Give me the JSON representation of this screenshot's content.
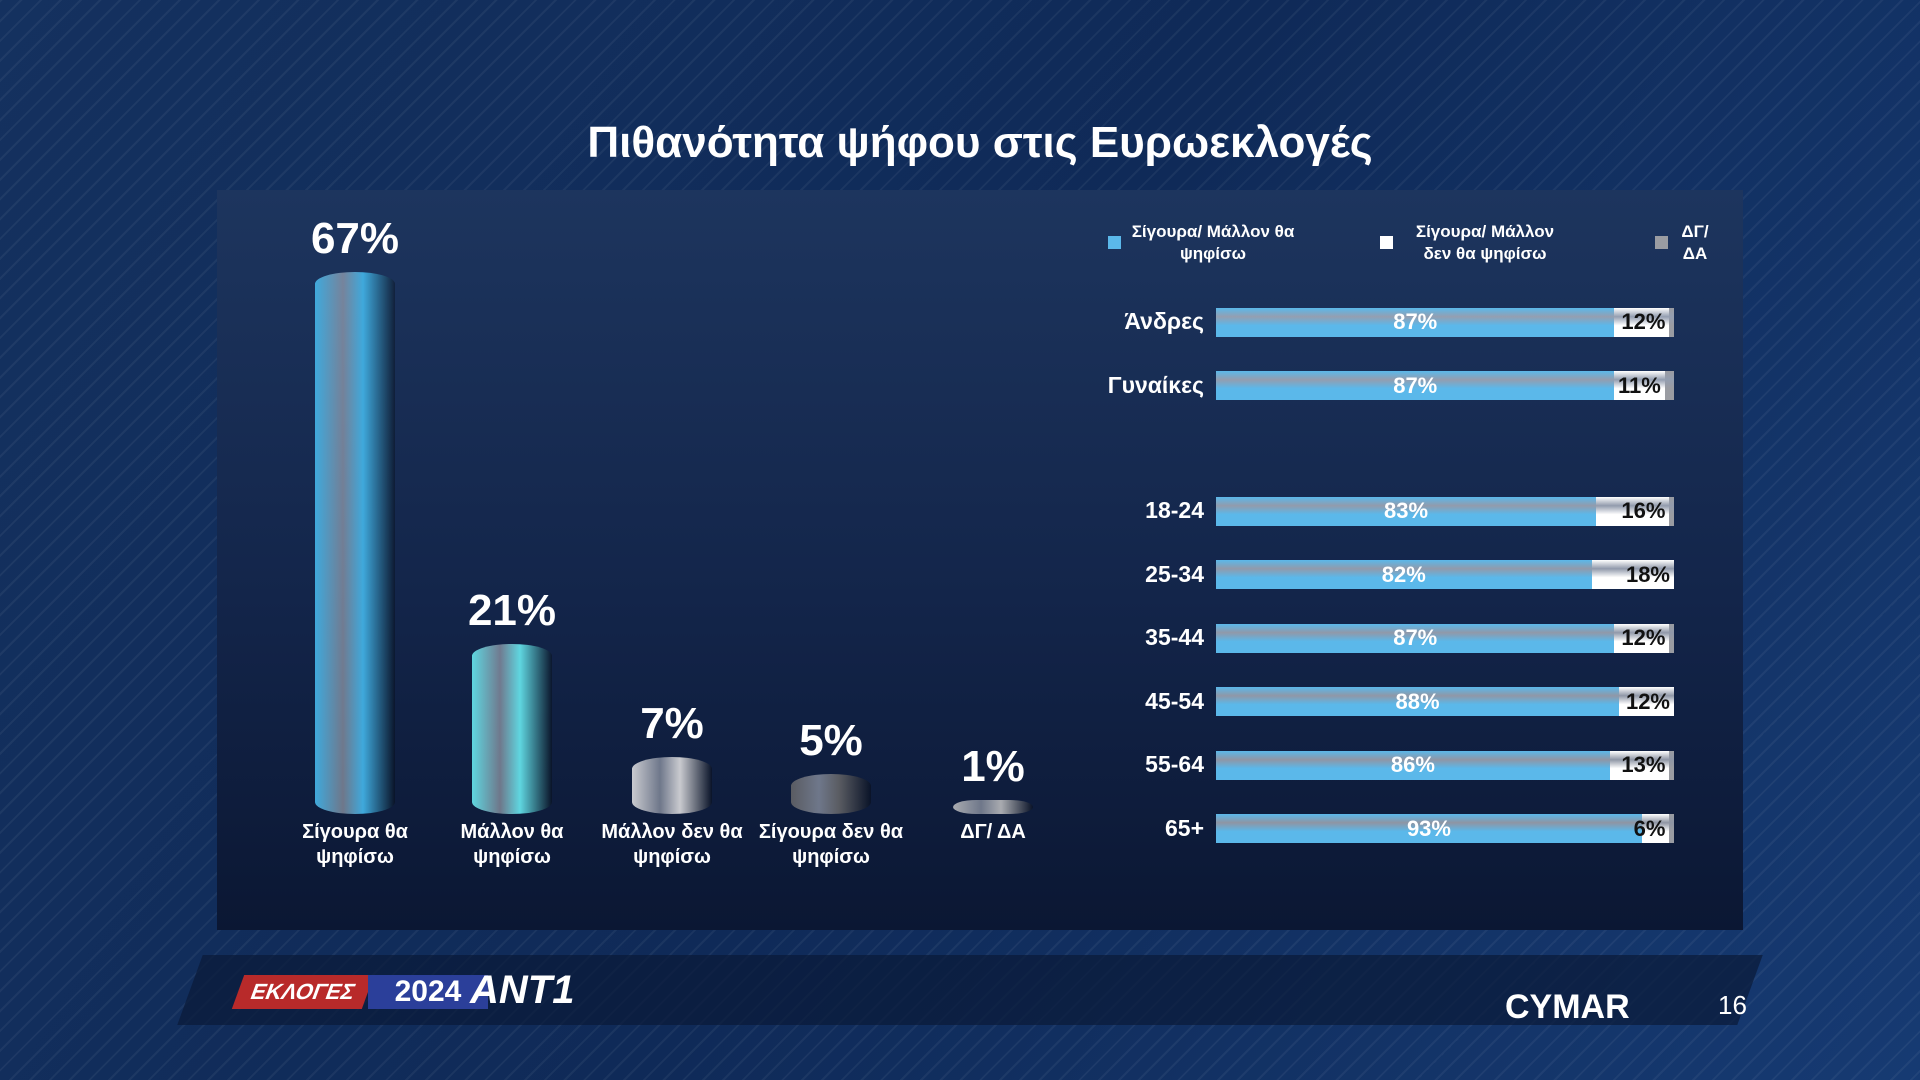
{
  "title": "Πιθανότητα ψήφου στις Ευρωεκλογές",
  "chart_data": [
    {
      "type": "bar",
      "categories": [
        "Σίγουρα θα ψηφίσω",
        "Μάλλον θα ψηφίσω",
        "Μάλλον δεν θα ψηφίσω",
        "Σίγουρα δεν θα ψηφίσω",
        "ΔΓ/ ΔΑ"
      ],
      "values": [
        67,
        21,
        7,
        5,
        1
      ],
      "value_labels": [
        "67%",
        "21%",
        "7%",
        "5%",
        "1%"
      ],
      "colors": [
        "#3fa9dc",
        "#5fd6e0",
        "#c9cacf",
        "#5a5c62",
        "#a9abb0"
      ]
    },
    {
      "type": "stacked-bar-horizontal",
      "categories": [
        "Άνδρες",
        "Γυναίκες",
        "18-24",
        "25-34",
        "35-44",
        "45-54",
        "55-64",
        "65+"
      ],
      "series": [
        {
          "name": "Σίγουρα/ Μάλλον θα ψηφίσω",
          "color": "#5bb8ea",
          "values": [
            87,
            87,
            83,
            82,
            87,
            88,
            86,
            93
          ],
          "value_labels": [
            "87%",
            "87%",
            "83%",
            "82%",
            "87%",
            "88%",
            "86%",
            "93%"
          ]
        },
        {
          "name": "Σίγουρα/ Μάλλον δεν θα ψηφίσω",
          "color": "#ffffff",
          "values": [
            12,
            11,
            16,
            18,
            12,
            12,
            13,
            6
          ],
          "value_labels": [
            "12%",
            "11%",
            "16%",
            "18%",
            "12%",
            "12%",
            "13%",
            "6%"
          ]
        },
        {
          "name": "ΔΓ/ ΔΑ",
          "color": "#9a9ca2",
          "values": [
            1,
            2,
            1,
            0,
            1,
            0,
            1,
            1
          ]
        }
      ]
    }
  ],
  "footer": {
    "event": "ΕΚΛΟΓΕΣ",
    "year": "2024",
    "channel": "ΑΝΤ1",
    "pollster": "CYMAR",
    "page": "16"
  }
}
